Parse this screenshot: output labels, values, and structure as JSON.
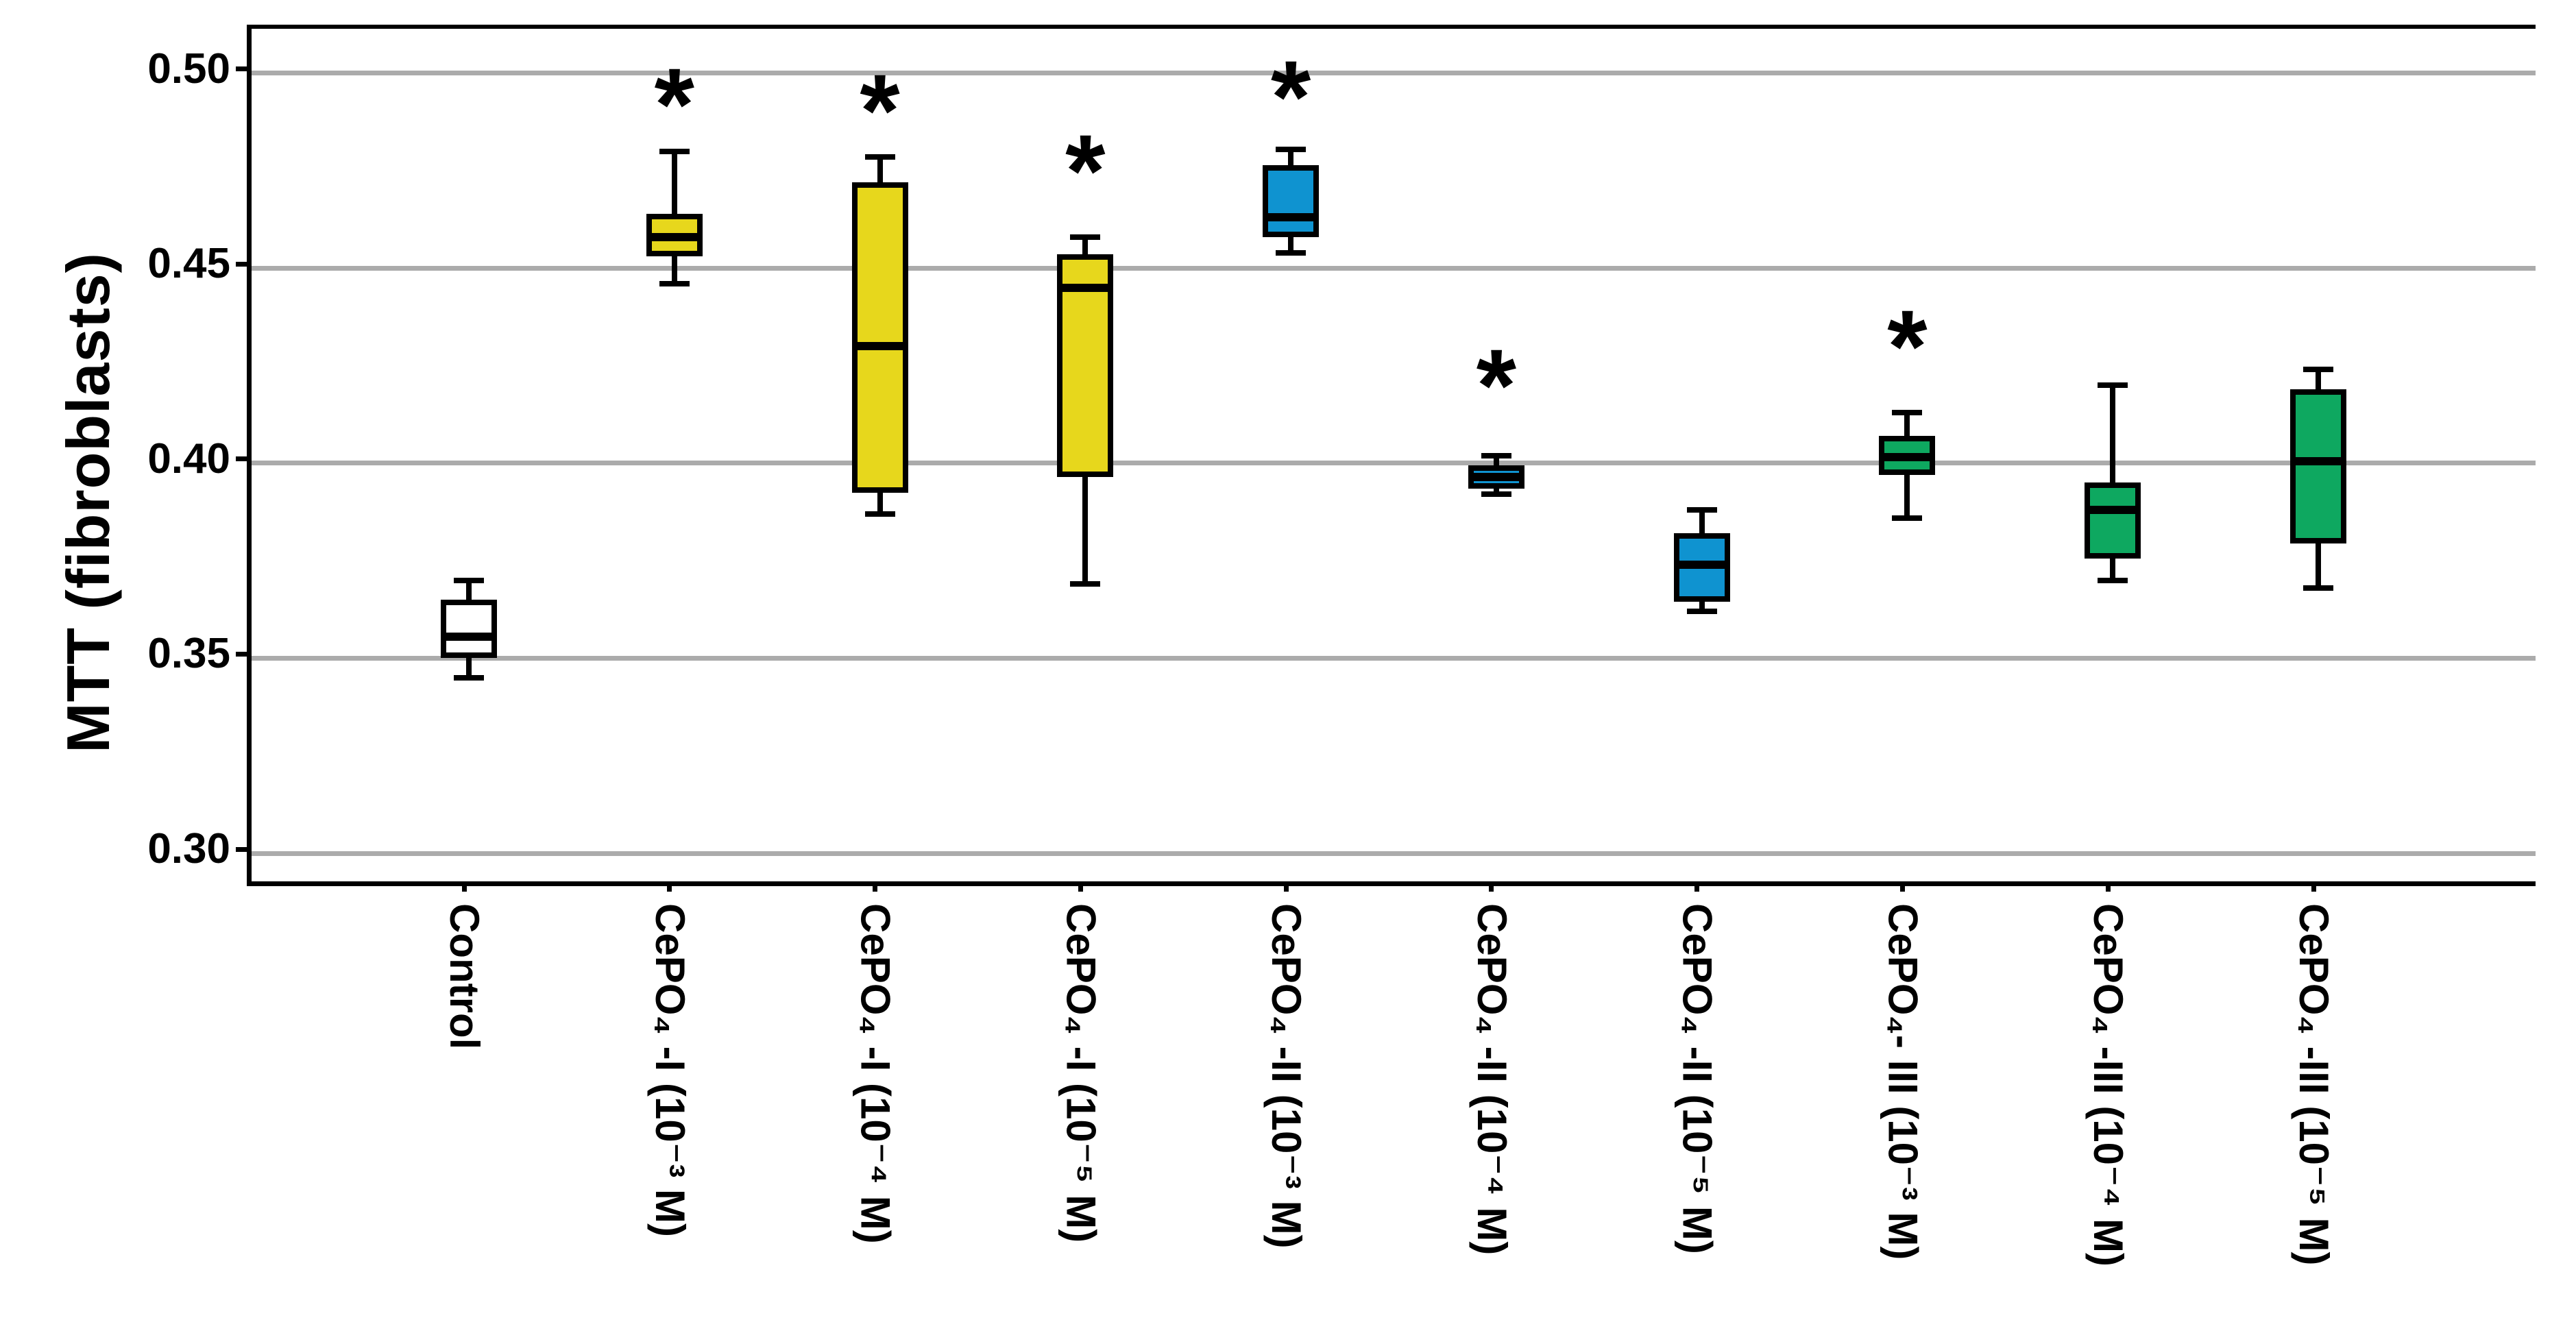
{
  "chart_data": {
    "type": "box",
    "title": "",
    "ylabel": "MTT (fibroblasts)",
    "xlabel": "",
    "ylim": [
      0.2928,
      0.5114
    ],
    "grid": "horizontal",
    "legend_position": "none",
    "colors": {
      "control_fill": "#FFFFFF",
      "group1_fill": "#E7D71C",
      "group2_fill": "#0F93D0",
      "group3_fill": "#0EA860",
      "gridline": "#ABABAB",
      "axis": "#000000",
      "significance_marker": "#000000"
    },
    "yticks": [
      {
        "value": 0.3,
        "label": "0.30"
      },
      {
        "value": 0.35,
        "label": "0.35"
      },
      {
        "value": 0.4,
        "label": "0.40"
      },
      {
        "value": 0.45,
        "label": "0.45"
      },
      {
        "value": 0.5,
        "label": "0.50"
      }
    ],
    "categories": [
      "Control",
      "CePO₄ -I (10⁻³ M)",
      "CePO₄ -I (10⁻⁴ M)",
      "CePO₄ -I (10⁻⁵ M)",
      "CePO₄ -II (10⁻³ M)",
      "CePO₄ -II (10⁻⁴ M)",
      "CePO₄ -II (10⁻⁵ M)",
      "CePO₄- III (10⁻³ M)",
      "CePO₄ -III (10⁻⁴ M)",
      "CePO₄ -III (10⁻⁵ M)"
    ],
    "series": [
      {
        "label": "Control",
        "color": "#FFFFFF",
        "min": 0.345,
        "q1": 0.35,
        "median": 0.3555,
        "q3": 0.365,
        "max": 0.37,
        "significant": false,
        "asterisk_y": null
      },
      {
        "label": "CePO₄ -I (10⁻³ M)",
        "color": "#E7D71C",
        "min": 0.446,
        "q1": 0.453,
        "median": 0.458,
        "q3": 0.464,
        "max": 0.48,
        "significant": true,
        "asterisk_y": 0.495
      },
      {
        "label": "CePO₄ -I (10⁻⁴ M)",
        "color": "#E7D71C",
        "min": 0.387,
        "q1": 0.3925,
        "median": 0.43,
        "q3": 0.472,
        "max": 0.4785,
        "significant": true,
        "asterisk_y": 0.4935
      },
      {
        "label": "CePO₄ -I (10⁻⁵ M)",
        "color": "#E7D71C",
        "min": 0.369,
        "q1": 0.3965,
        "median": 0.445,
        "q3": 0.4535,
        "max": 0.458,
        "significant": true,
        "asterisk_y": 0.478
      },
      {
        "label": "CePO₄ -II (10⁻³ M)",
        "color": "#0F93D0",
        "min": 0.454,
        "q1": 0.458,
        "median": 0.463,
        "q3": 0.4765,
        "max": 0.4805,
        "significant": true,
        "asterisk_y": 0.497
      },
      {
        "label": "CePO₄ -II (10⁻⁴ M)",
        "color": "#0F93D0",
        "min": 0.392,
        "q1": 0.3935,
        "median": 0.3965,
        "q3": 0.3995,
        "max": 0.402,
        "significant": true,
        "asterisk_y": 0.423
      },
      {
        "label": "CePO₄ -II (10⁻⁵ M)",
        "color": "#0F93D0",
        "min": 0.362,
        "q1": 0.3645,
        "median": 0.374,
        "q3": 0.382,
        "max": 0.388,
        "significant": false,
        "asterisk_y": null
      },
      {
        "label": "CePO₄- III (10⁻³ M)",
        "color": "#0EA860",
        "min": 0.386,
        "q1": 0.397,
        "median": 0.4015,
        "q3": 0.407,
        "max": 0.413,
        "significant": true,
        "asterisk_y": 0.433
      },
      {
        "label": "CePO₄ -III (10⁻⁴ M)",
        "color": "#0EA860",
        "min": 0.37,
        "q1": 0.3755,
        "median": 0.388,
        "q3": 0.395,
        "max": 0.42,
        "significant": false,
        "asterisk_y": null
      },
      {
        "label": "CePO₄ -III (10⁻⁵ M)",
        "color": "#0EA860",
        "min": 0.368,
        "q1": 0.3795,
        "median": 0.4005,
        "q3": 0.419,
        "max": 0.424,
        "significant": false,
        "asterisk_y": null
      }
    ]
  }
}
